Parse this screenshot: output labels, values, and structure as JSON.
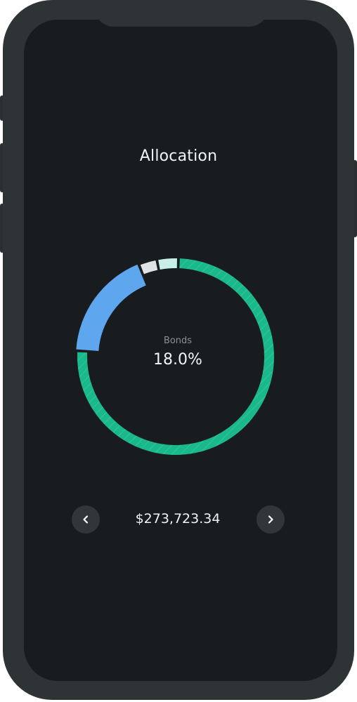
{
  "screen": {
    "title": "Allocation"
  },
  "allocation": {
    "selected_label": "Bonds",
    "selected_value": "18.0%"
  },
  "balance": {
    "amount": "$273,723.34"
  },
  "nav": {
    "prev_icon": "chevron-left-icon",
    "next_icon": "chevron-right-icon"
  },
  "chart_data": {
    "type": "pie",
    "segments": [
      {
        "value": 75.5,
        "color": "#19b98c"
      },
      {
        "value": 18.0,
        "color": "#5ea7ee"
      },
      {
        "value": 3.0,
        "color": "#dfe3e3"
      },
      {
        "value": 3.5,
        "color": "#c8efe6"
      }
    ]
  }
}
